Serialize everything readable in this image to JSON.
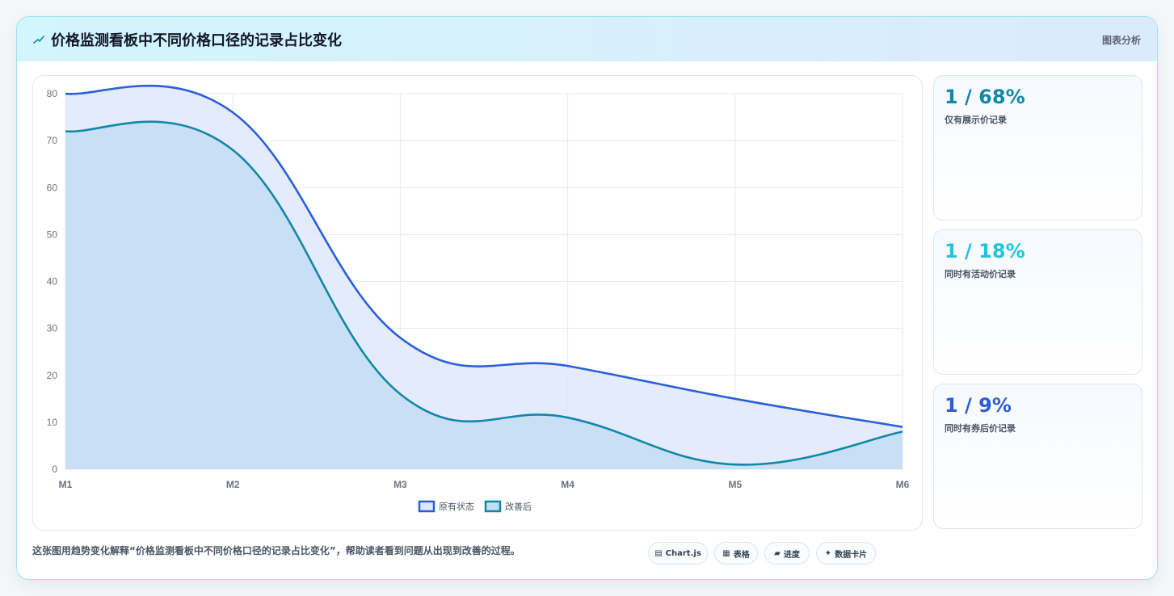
{
  "header": {
    "title": "价格监测看板中不同价格口径的记录占比变化",
    "tag": "图表分析"
  },
  "chart_data": {
    "type": "area",
    "title": "",
    "xlabel": "",
    "ylabel": "",
    "categories": [
      "M1",
      "M2",
      "M3",
      "M4",
      "M5",
      "M6"
    ],
    "ylim": [
      0,
      80
    ],
    "yticks": [
      0,
      10,
      20,
      30,
      40,
      50,
      60,
      70,
      80
    ],
    "grid": true,
    "legend_position": "bottom",
    "series": [
      {
        "name": "原有状态",
        "values": [
          80,
          76,
          28,
          22,
          15,
          9
        ],
        "color": "#2a5fd6",
        "fill": "#dfe8fb"
      },
      {
        "name": "改善后",
        "values": [
          72,
          68,
          16,
          11,
          1,
          8
        ],
        "color": "#1287a8",
        "fill": "#c4ddf2"
      }
    ]
  },
  "stats": [
    {
      "value": "1 / 68%",
      "label": "仅有展示价记录",
      "color": "#1288a6"
    },
    {
      "value": "1 / 18%",
      "label": "同时有活动价记录",
      "color": "#22c4dc"
    },
    {
      "value": "1 / 9%",
      "label": "同时有券后价记录",
      "color": "#2a5fd6"
    }
  ],
  "footer": {
    "text": "这张图用趋势变化解释“价格监测看板中不同价格口径的记录占比变化”，帮助读者看到问题从出现到改善的过程。",
    "pills": [
      {
        "icon": "▤",
        "label": "Chart.js"
      },
      {
        "icon": "▦",
        "label": "表格"
      },
      {
        "icon": "▰",
        "label": "进度"
      },
      {
        "icon": "✦",
        "label": "数据卡片"
      }
    ]
  }
}
